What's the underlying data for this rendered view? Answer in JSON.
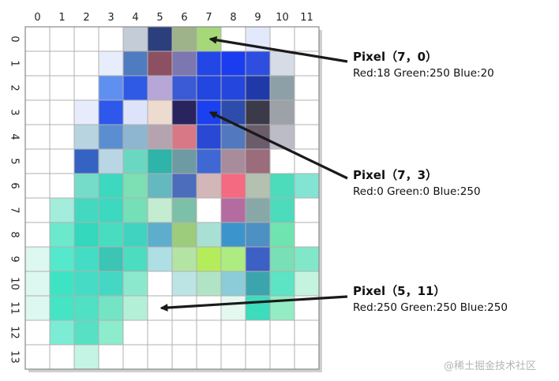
{
  "grid": {
    "col_labels": [
      "0",
      "1",
      "2",
      "3",
      "4",
      "5",
      "6",
      "7",
      "8",
      "9",
      "10",
      "11"
    ],
    "row_labels": [
      "0",
      "1",
      "2",
      "3",
      "4",
      "5",
      "6",
      "7",
      "8",
      "9",
      "10",
      "11",
      "12",
      "13"
    ],
    "pixels": [
      [
        "#ffffff",
        "#ffffff",
        "#ffffff",
        "#ffffff",
        "#c4ccd8",
        "#2a3f7c",
        "#9eb38a",
        "#a6d879",
        "#ffffff",
        "#e2e9fa",
        "#ffffff",
        "#ffffff"
      ],
      [
        "#ffffff",
        "#ffffff",
        "#ffffff",
        "#e7edfb",
        "#4f7bc0",
        "#8c5062",
        "#7c77b0",
        "#2247e6",
        "#1a3df0",
        "#2e4ee0",
        "#d6dce6",
        "#ffffff"
      ],
      [
        "#ffffff",
        "#ffffff",
        "#ffffff",
        "#5f8ff0",
        "#2f5ae6",
        "#b6a7d8",
        "#3b5ad6",
        "#2246e0",
        "#2446dc",
        "#1f3aa8",
        "#8da0a8",
        "#ffffff"
      ],
      [
        "#ffffff",
        "#ffffff",
        "#e6ecfb",
        "#2e58ec",
        "#dde4fa",
        "#eddbd0",
        "#29235e",
        "#1a40f0",
        "#2e4cac",
        "#3a3a4a",
        "#9ca2a8",
        "#ffffff"
      ],
      [
        "#ffffff",
        "#ffffff",
        "#b8d4e0",
        "#5a8ed0",
        "#8eb6d0",
        "#b5a4b0",
        "#d87886",
        "#2948d4",
        "#5278c0",
        "#6a5c6a",
        "#bcbcc8",
        "#ffffff"
      ],
      [
        "#ffffff",
        "#ffffff",
        "#3563c4",
        "#b8d6e4",
        "#6ad8c0",
        "#2eb4a8",
        "#6e9aa4",
        "#4068d4",
        "#a88c9c",
        "#9a6c7c",
        "#ffffff",
        "#ffffff"
      ],
      [
        "#ffffff",
        "#ffffff",
        "#74dcc8",
        "#3cd8c0",
        "#7ce0b4",
        "#64b8c0",
        "#4c6cbc",
        "#d2b6b8",
        "#f46a80",
        "#b4c0b0",
        "#4cdcbc",
        "#84e4d4"
      ],
      [
        "#ffffff",
        "#a4ecdc",
        "#44d8c0",
        "#3cd8c0",
        "#74e0b8",
        "#c4ecd0",
        "#7cc0a8",
        "#ffffff",
        "#b46ca0",
        "#88a8a8",
        "#4cdcbc",
        "#ffffff"
      ],
      [
        "#ffffff",
        "#6ce8cc",
        "#34d8bc",
        "#48dcc0",
        "#40d4c0",
        "#5caecc",
        "#9ccc7c",
        "#a8e0d4",
        "#3c94cc",
        "#4c90c4",
        "#70e4b0",
        "#ffffff"
      ],
      [
        "#dcf8f0",
        "#54e8cc",
        "#44dcc4",
        "#3cc4b4",
        "#4cdcc0",
        "#aedfe4",
        "#b4e4a4",
        "#b4ec5c",
        "#acec80",
        "#3c60c4",
        "#78e0b4",
        "#80e8c8"
      ],
      [
        "#dcf8f0",
        "#3ce4c4",
        "#44dcc4",
        "#44d8c4",
        "#8ce8cc",
        "#ffffff",
        "#bce4e4",
        "#b0e4c4",
        "#8cccd8",
        "#3ca4ac",
        "#5ce4c4",
        "#c4f4e0"
      ],
      [
        "#dcf8f0",
        "#44e4c4",
        "#50e0c4",
        "#74e4c4",
        "#b4f0d8",
        "#ffffff",
        "#ffffff",
        "#ffffff",
        "#e4f8f0",
        "#3cdcbc",
        "#94ecc4",
        "#ffffff"
      ],
      [
        "#ffffff",
        "#7cecd4",
        "#58e0c4",
        "#8ceccc",
        "#ffffff",
        "#ffffff",
        "#ffffff",
        "#ffffff",
        "#ffffff",
        "#ffffff",
        "#ffffff",
        "#ffffff"
      ],
      [
        "#ffffff",
        "#ffffff",
        "#c4f4e4",
        "#ffffff",
        "#ffffff",
        "#ffffff",
        "#ffffff",
        "#ffffff",
        "#ffffff",
        "#ffffff",
        "#ffffff",
        "#ffffff"
      ]
    ]
  },
  "callouts": [
    {
      "title": "Pixel（7，0）",
      "body": "Red:18 Green:250 Blue:20",
      "target": [
        7,
        0
      ]
    },
    {
      "title": "Pixel（7，3）",
      "body": "Red:0 Green:0 Blue:250",
      "target": [
        7,
        3
      ]
    },
    {
      "title": "Pixel（5，11）",
      "body": "Red:250 Green:250 Blue:250",
      "target": [
        5,
        11
      ]
    }
  ],
  "watermark": "@稀土掘金技术社区",
  "colors": {
    "grid_line": "#b0b0b0",
    "arrow": "#1a1a1a",
    "shadow": "#cfcfcf"
  }
}
